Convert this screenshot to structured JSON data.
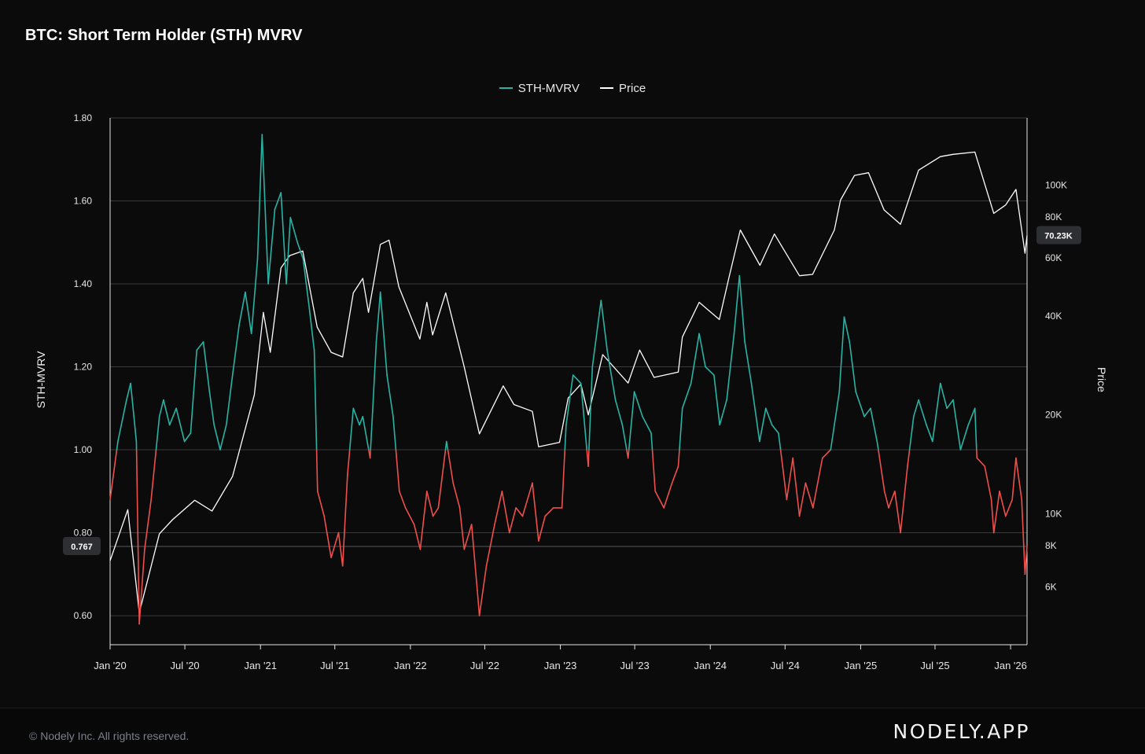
{
  "title": "BTC: Short Term Holder (STH) MVRV",
  "legend": {
    "items": [
      {
        "label": "STH-MVRV",
        "color": "#2ab3a3"
      },
      {
        "label": "Price",
        "color": "#ffffff"
      }
    ]
  },
  "footer": {
    "copyright": "© Nodely Inc. All rights reserved.",
    "brand": "NODELY.APP"
  },
  "chart_data": {
    "type": "line",
    "title": "BTC: Short Term Holder (STH) MVRV",
    "x_range": [
      "2020-01-01",
      "2026-02-10"
    ],
    "x_ticks": [
      "Jan '20",
      "Jul '20",
      "Jan '21",
      "Jul '21",
      "Jan '22",
      "Jul '22",
      "Jan '23",
      "Jul '23",
      "Jan '24",
      "Jul '24",
      "Jan '25",
      "Jul '25",
      "Jan '26"
    ],
    "y_left": {
      "label": "STH-MVRV",
      "range": [
        0.53,
        1.8
      ],
      "ticks": [
        0.6,
        0.8,
        1.0,
        1.2,
        1.4,
        1.6,
        1.8
      ],
      "tick_labels": [
        "0.60",
        "0.80",
        "1.00",
        "1.20",
        "1.40",
        "1.60",
        "1.80"
      ]
    },
    "y_right": {
      "label": "Price",
      "scale": "log",
      "range": [
        4000,
        160000
      ],
      "ticks": [
        6000,
        8000,
        10000,
        20000,
        40000,
        60000,
        80000,
        100000
      ],
      "tick_labels": [
        "6K",
        "8K",
        "10K",
        "20K",
        "40K",
        "60K",
        "80K",
        "100K"
      ]
    },
    "threshold": 1.0,
    "colors": {
      "above": "#2ab3a3",
      "below": "#ef4f4b",
      "price": "#ffffff"
    },
    "last_values": {
      "sth_mvrv": "0.767",
      "price": "70.23K"
    },
    "grid": true,
    "legend_position": "top-center",
    "series": [
      {
        "name": "STH-MVRV",
        "points": [
          [
            "2020-01-01",
            0.88
          ],
          [
            "2020-01-20",
            1.02
          ],
          [
            "2020-02-10",
            1.12
          ],
          [
            "2020-02-20",
            1.16
          ],
          [
            "2020-03-05",
            1.02
          ],
          [
            "2020-03-12",
            0.58
          ],
          [
            "2020-03-25",
            0.76
          ],
          [
            "2020-04-10",
            0.88
          ],
          [
            "2020-04-30",
            1.08
          ],
          [
            "2020-05-10",
            1.12
          ],
          [
            "2020-05-25",
            1.06
          ],
          [
            "2020-06-10",
            1.1
          ],
          [
            "2020-06-30",
            1.02
          ],
          [
            "2020-07-15",
            1.04
          ],
          [
            "2020-07-30",
            1.24
          ],
          [
            "2020-08-15",
            1.26
          ],
          [
            "2020-08-30",
            1.14
          ],
          [
            "2020-09-10",
            1.06
          ],
          [
            "2020-09-25",
            1.0
          ],
          [
            "2020-10-10",
            1.06
          ],
          [
            "2020-10-25",
            1.18
          ],
          [
            "2020-11-10",
            1.3
          ],
          [
            "2020-11-25",
            1.38
          ],
          [
            "2020-12-10",
            1.28
          ],
          [
            "2020-12-25",
            1.46
          ],
          [
            "2021-01-05",
            1.76
          ],
          [
            "2021-01-20",
            1.4
          ],
          [
            "2021-02-05",
            1.58
          ],
          [
            "2021-02-20",
            1.62
          ],
          [
            "2021-03-05",
            1.4
          ],
          [
            "2021-03-15",
            1.56
          ],
          [
            "2021-04-01",
            1.5
          ],
          [
            "2021-04-15",
            1.46
          ],
          [
            "2021-04-30",
            1.34
          ],
          [
            "2021-05-12",
            1.24
          ],
          [
            "2021-05-20",
            0.9
          ],
          [
            "2021-06-05",
            0.84
          ],
          [
            "2021-06-22",
            0.74
          ],
          [
            "2021-07-10",
            0.8
          ],
          [
            "2021-07-20",
            0.72
          ],
          [
            "2021-08-01",
            0.94
          ],
          [
            "2021-08-15",
            1.1
          ],
          [
            "2021-08-30",
            1.06
          ],
          [
            "2021-09-07",
            1.08
          ],
          [
            "2021-09-25",
            0.98
          ],
          [
            "2021-10-10",
            1.26
          ],
          [
            "2021-10-20",
            1.38
          ],
          [
            "2021-11-05",
            1.18
          ],
          [
            "2021-11-20",
            1.08
          ],
          [
            "2021-12-05",
            0.9
          ],
          [
            "2021-12-20",
            0.86
          ],
          [
            "2022-01-10",
            0.82
          ],
          [
            "2022-01-25",
            0.76
          ],
          [
            "2022-02-10",
            0.9
          ],
          [
            "2022-02-25",
            0.84
          ],
          [
            "2022-03-10",
            0.86
          ],
          [
            "2022-03-30",
            1.02
          ],
          [
            "2022-04-15",
            0.92
          ],
          [
            "2022-05-01",
            0.86
          ],
          [
            "2022-05-12",
            0.76
          ],
          [
            "2022-05-30",
            0.82
          ],
          [
            "2022-06-13",
            0.66
          ],
          [
            "2022-06-18",
            0.6
          ],
          [
            "2022-07-05",
            0.72
          ],
          [
            "2022-07-25",
            0.82
          ],
          [
            "2022-08-12",
            0.9
          ],
          [
            "2022-08-30",
            0.8
          ],
          [
            "2022-09-15",
            0.86
          ],
          [
            "2022-10-01",
            0.84
          ],
          [
            "2022-10-25",
            0.92
          ],
          [
            "2022-11-09",
            0.78
          ],
          [
            "2022-11-25",
            0.84
          ],
          [
            "2022-12-15",
            0.86
          ],
          [
            "2023-01-05",
            0.86
          ],
          [
            "2023-01-15",
            1.06
          ],
          [
            "2023-02-01",
            1.18
          ],
          [
            "2023-02-20",
            1.16
          ],
          [
            "2023-03-10",
            0.96
          ],
          [
            "2023-03-20",
            1.2
          ],
          [
            "2023-04-10",
            1.36
          ],
          [
            "2023-04-25",
            1.24
          ],
          [
            "2023-05-15",
            1.12
          ],
          [
            "2023-06-01",
            1.06
          ],
          [
            "2023-06-15",
            0.98
          ],
          [
            "2023-06-30",
            1.14
          ],
          [
            "2023-07-20",
            1.08
          ],
          [
            "2023-08-10",
            1.04
          ],
          [
            "2023-08-20",
            0.9
          ],
          [
            "2023-09-10",
            0.86
          ],
          [
            "2023-09-30",
            0.92
          ],
          [
            "2023-10-15",
            0.96
          ],
          [
            "2023-10-25",
            1.1
          ],
          [
            "2023-11-15",
            1.16
          ],
          [
            "2023-12-05",
            1.28
          ],
          [
            "2023-12-20",
            1.2
          ],
          [
            "2024-01-10",
            1.18
          ],
          [
            "2024-01-24",
            1.06
          ],
          [
            "2024-02-10",
            1.12
          ],
          [
            "2024-02-28",
            1.28
          ],
          [
            "2024-03-12",
            1.42
          ],
          [
            "2024-03-25",
            1.26
          ],
          [
            "2024-04-10",
            1.16
          ],
          [
            "2024-04-30",
            1.02
          ],
          [
            "2024-05-15",
            1.1
          ],
          [
            "2024-05-30",
            1.06
          ],
          [
            "2024-06-15",
            1.04
          ],
          [
            "2024-07-05",
            0.88
          ],
          [
            "2024-07-20",
            0.98
          ],
          [
            "2024-08-05",
            0.84
          ],
          [
            "2024-08-20",
            0.92
          ],
          [
            "2024-09-07",
            0.86
          ],
          [
            "2024-09-30",
            0.98
          ],
          [
            "2024-10-20",
            1.0
          ],
          [
            "2024-11-10",
            1.14
          ],
          [
            "2024-11-22",
            1.32
          ],
          [
            "2024-12-05",
            1.26
          ],
          [
            "2024-12-20",
            1.14
          ],
          [
            "2025-01-10",
            1.08
          ],
          [
            "2025-01-25",
            1.1
          ],
          [
            "2025-02-10",
            1.02
          ],
          [
            "2025-02-28",
            0.9
          ],
          [
            "2025-03-10",
            0.86
          ],
          [
            "2025-03-25",
            0.9
          ],
          [
            "2025-04-08",
            0.8
          ],
          [
            "2025-04-25",
            0.96
          ],
          [
            "2025-05-10",
            1.08
          ],
          [
            "2025-05-22",
            1.12
          ],
          [
            "2025-06-10",
            1.06
          ],
          [
            "2025-06-25",
            1.02
          ],
          [
            "2025-07-14",
            1.16
          ],
          [
            "2025-07-30",
            1.1
          ],
          [
            "2025-08-14",
            1.12
          ],
          [
            "2025-09-01",
            1.0
          ],
          [
            "2025-09-20",
            1.06
          ],
          [
            "2025-10-06",
            1.1
          ],
          [
            "2025-10-11",
            0.98
          ],
          [
            "2025-10-30",
            0.96
          ],
          [
            "2025-11-15",
            0.88
          ],
          [
            "2025-11-21",
            0.8
          ],
          [
            "2025-12-05",
            0.9
          ],
          [
            "2025-12-20",
            0.84
          ],
          [
            "2026-01-05",
            0.88
          ],
          [
            "2026-01-14",
            0.98
          ],
          [
            "2026-01-28",
            0.88
          ],
          [
            "2026-02-05",
            0.7
          ],
          [
            "2026-02-10",
            0.767
          ]
        ]
      },
      {
        "name": "Price",
        "points": [
          [
            "2020-01-01",
            7200
          ],
          [
            "2020-02-13",
            10300
          ],
          [
            "2020-03-12",
            5000
          ],
          [
            "2020-04-30",
            8700
          ],
          [
            "2020-06-01",
            9600
          ],
          [
            "2020-07-25",
            11000
          ],
          [
            "2020-09-05",
            10200
          ],
          [
            "2020-10-25",
            13000
          ],
          [
            "2020-12-17",
            23000
          ],
          [
            "2021-01-08",
            41000
          ],
          [
            "2021-01-25",
            31000
          ],
          [
            "2021-02-20",
            56000
          ],
          [
            "2021-03-13",
            61000
          ],
          [
            "2021-04-14",
            63000
          ],
          [
            "2021-05-19",
            37000
          ],
          [
            "2021-06-22",
            31000
          ],
          [
            "2021-07-20",
            30000
          ],
          [
            "2021-08-15",
            47000
          ],
          [
            "2021-09-07",
            52000
          ],
          [
            "2021-09-21",
            41000
          ],
          [
            "2021-10-20",
            66000
          ],
          [
            "2021-11-10",
            68000
          ],
          [
            "2021-12-04",
            49000
          ],
          [
            "2022-01-24",
            34000
          ],
          [
            "2022-02-10",
            44000
          ],
          [
            "2022-02-24",
            35000
          ],
          [
            "2022-03-28",
            47000
          ],
          [
            "2022-05-12",
            28000
          ],
          [
            "2022-06-18",
            17500
          ],
          [
            "2022-08-15",
            24500
          ],
          [
            "2022-09-10",
            21500
          ],
          [
            "2022-10-25",
            20500
          ],
          [
            "2022-11-09",
            16000
          ],
          [
            "2022-12-30",
            16500
          ],
          [
            "2023-01-20",
            22500
          ],
          [
            "2023-02-20",
            24800
          ],
          [
            "2023-03-10",
            20000
          ],
          [
            "2023-04-14",
            30500
          ],
          [
            "2023-06-15",
            25000
          ],
          [
            "2023-07-13",
            31500
          ],
          [
            "2023-08-17",
            26000
          ],
          [
            "2023-10-15",
            27000
          ],
          [
            "2023-10-25",
            34500
          ],
          [
            "2023-12-05",
            44000
          ],
          [
            "2024-01-23",
            39000
          ],
          [
            "2024-02-15",
            52000
          ],
          [
            "2024-03-14",
            73000
          ],
          [
            "2024-05-01",
            57000
          ],
          [
            "2024-06-05",
            71000
          ],
          [
            "2024-08-05",
            53000
          ],
          [
            "2024-09-06",
            53500
          ],
          [
            "2024-10-29",
            73000
          ],
          [
            "2024-11-13",
            90000
          ],
          [
            "2024-12-17",
            107000
          ],
          [
            "2025-01-20",
            109000
          ],
          [
            "2025-02-27",
            84000
          ],
          [
            "2025-04-08",
            76000
          ],
          [
            "2025-05-22",
            111000
          ],
          [
            "2025-07-14",
            122000
          ],
          [
            "2025-08-14",
            124000
          ],
          [
            "2025-10-06",
            126000
          ],
          [
            "2025-11-21",
            82000
          ],
          [
            "2025-12-20",
            87000
          ],
          [
            "2026-01-14",
            97000
          ],
          [
            "2026-02-05",
            62000
          ],
          [
            "2026-02-10",
            70230
          ]
        ]
      }
    ]
  }
}
